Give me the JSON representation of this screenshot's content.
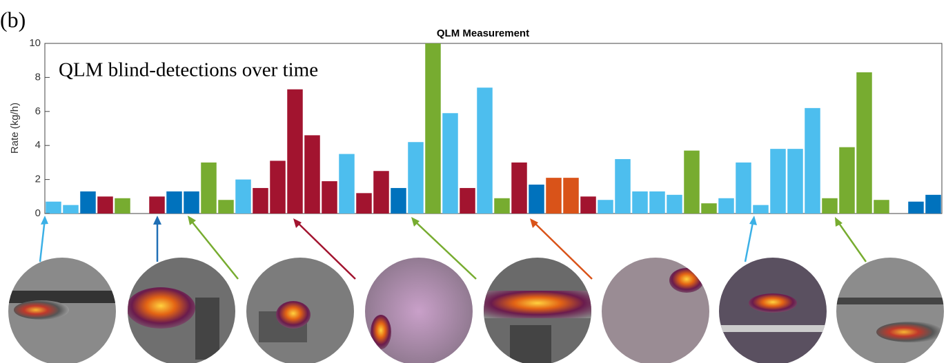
{
  "panel_label": "(b)",
  "chart_data": {
    "type": "bar",
    "title": "QLM Measurement",
    "ylabel": "Rate (kg/h)",
    "annotation": "QLM blind-detections over time",
    "categories": [
      null,
      null,
      null,
      null,
      null,
      null,
      null,
      null,
      null,
      null,
      null,
      null,
      null,
      null,
      null,
      null,
      null,
      null,
      null,
      null,
      null,
      null,
      null,
      null,
      null,
      null,
      null,
      null,
      null,
      null,
      null,
      null,
      null,
      null,
      null,
      null,
      null,
      null,
      null,
      null,
      null,
      null,
      null,
      null,
      null,
      null,
      null,
      null,
      null,
      null,
      null,
      null
    ],
    "values": [
      0.7,
      0.5,
      1.3,
      1.0,
      0.9,
      null,
      1.0,
      1.3,
      1.3,
      3.0,
      0.8,
      2.0,
      1.5,
      3.1,
      7.3,
      4.6,
      1.9,
      3.5,
      1.2,
      2.5,
      1.5,
      4.2,
      10,
      5.9,
      1.5,
      7.4,
      0.9,
      3.0,
      1.7,
      2.1,
      2.1,
      1.0,
      0.8,
      3.2,
      1.3,
      1.3,
      1.1,
      3.7,
      0.6,
      0.9,
      3.0,
      0.5,
      3.8,
      3.8,
      6.2,
      0.9,
      3.9,
      8.3,
      0.8,
      null,
      0.7,
      1.1
    ],
    "colors": [
      "#4dbeee",
      "#4dbeee",
      "#0072bd",
      "#a2142f",
      "#77ac30",
      "#4dbeee",
      "#a2142f",
      "#0072bd",
      "#0072bd",
      "#77ac30",
      "#77ac30",
      "#4dbeee",
      "#a2142f",
      "#a2142f",
      "#a2142f",
      "#a2142f",
      "#a2142f",
      "#4dbeee",
      "#a2142f",
      "#a2142f",
      "#0072bd",
      "#4dbeee",
      "#77ac30",
      "#4dbeee",
      "#a2142f",
      "#4dbeee",
      "#77ac30",
      "#a2142f",
      "#0072bd",
      "#d95319",
      "#d95319",
      "#a2142f",
      "#4dbeee",
      "#4dbeee",
      "#4dbeee",
      "#4dbeee",
      "#4dbeee",
      "#77ac30",
      "#77ac30",
      "#4dbeee",
      "#4dbeee",
      "#4dbeee",
      "#4dbeee",
      "#4dbeee",
      "#4dbeee",
      "#77ac30",
      "#77ac30",
      "#77ac30",
      "#77ac30",
      "#0072bd",
      "#0072bd",
      "#0072bd"
    ],
    "ylim": [
      0,
      10
    ],
    "yticks": [
      0,
      2,
      4,
      6,
      8,
      10
    ],
    "grid": false
  }
}
